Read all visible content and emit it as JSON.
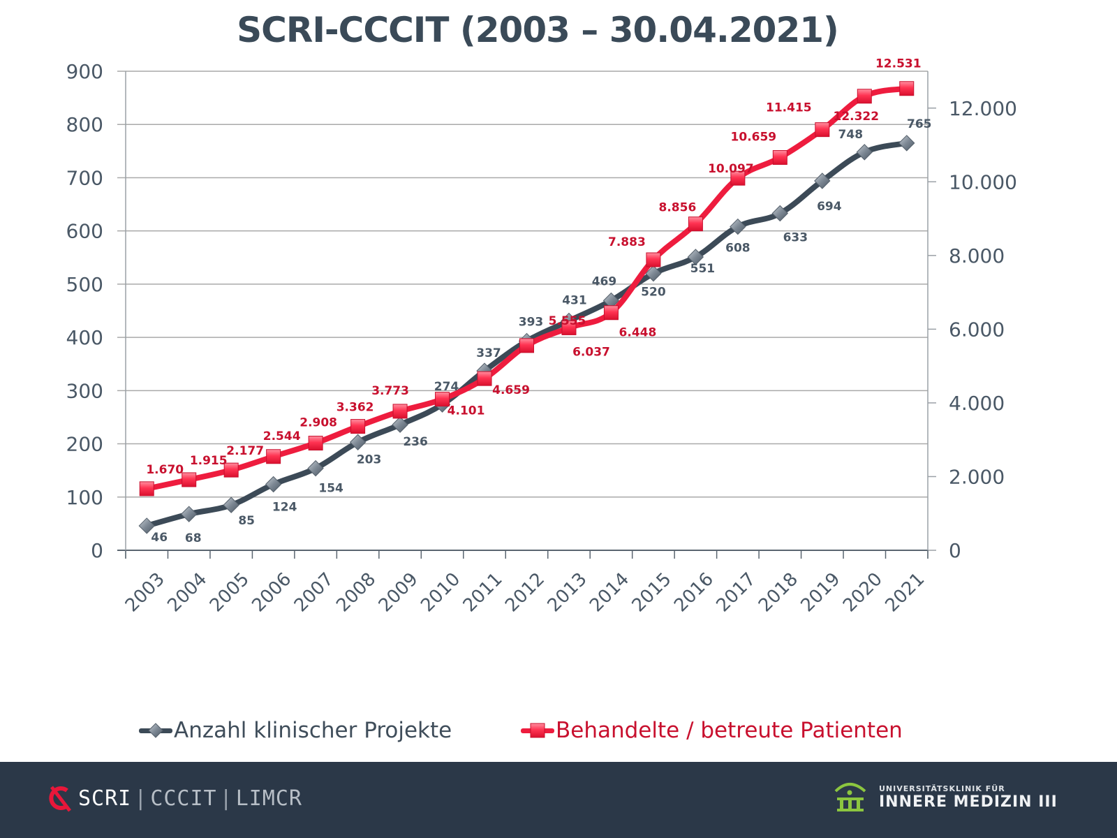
{
  "chart_data": {
    "type": "line",
    "title": "SCRI-CCCIT (2003 – 30.04.2021)",
    "xlabel": "",
    "ylabel": "",
    "ylabel_right": "",
    "categories": [
      "2003",
      "2004",
      "2005",
      "2006",
      "2007",
      "2008",
      "2009",
      "2010",
      "2011",
      "2012",
      "2013",
      "2014",
      "2015",
      "2016",
      "2017",
      "2018",
      "2019",
      "2020",
      "2021"
    ],
    "ylim": [
      0,
      900
    ],
    "yticks": [
      0,
      100,
      200,
      300,
      400,
      500,
      600,
      700,
      800,
      900
    ],
    "ytick_labels": [
      "0",
      "100",
      "200",
      "300",
      "400",
      "500",
      "600",
      "700",
      "800",
      "900"
    ],
    "ylim_right": [
      0,
      13000
    ],
    "yticks_right": [
      0,
      2000,
      4000,
      6000,
      8000,
      10000,
      12000
    ],
    "ytick_labels_right": [
      "0",
      "2.000",
      "4.000",
      "6.000",
      "8.000",
      "10.000",
      "12.000"
    ],
    "grid": true,
    "legend_position": "bottom",
    "series": [
      {
        "name": "Anzahl klinischer Projekte",
        "axis": "left",
        "color": "#3c4a57",
        "marker": "diamond",
        "values": [
          46,
          68,
          85,
          124,
          154,
          203,
          236,
          274,
          337,
          393,
          431,
          469,
          520,
          551,
          608,
          633,
          694,
          748,
          765
        ],
        "labels": [
          "46",
          "68",
          "85",
          "124",
          "154",
          "203",
          "236",
          "274",
          "337",
          "393",
          "431",
          "469",
          "520",
          "551",
          "608",
          "633",
          "694",
          "748",
          "765"
        ]
      },
      {
        "name": "Behandelte / betreute Patienten",
        "axis": "right",
        "color": "#ee1c3e",
        "marker": "square",
        "values": [
          1670,
          1915,
          2177,
          2544,
          2908,
          3362,
          3773,
          4101,
          4659,
          5555,
          6037,
          6448,
          7883,
          8856,
          10097,
          10659,
          11415,
          12322,
          12531
        ],
        "labels": [
          "1.670",
          "1.915",
          "2.177",
          "2.544",
          "2.908",
          "3.362",
          "3.773",
          "4.101",
          "4.659",
          "5.555",
          "6.037",
          "6.448",
          "7.883",
          "8.856",
          "10.097",
          "10.659",
          "11.415",
          "12.322",
          "12.531"
        ]
      }
    ]
  },
  "colors": {
    "title": "#3a4a58",
    "axis_text": "#4a5866",
    "dark_series": "#3c4a57",
    "red_series": "#ee1c3e",
    "red_label": "#c8102e",
    "footer_bg": "#2b3848",
    "logo_red": "#e8173a",
    "logo_green": "#8cc63f"
  },
  "footer": {
    "left_logo_icon": "scri-logo-icon",
    "left_scri": "SCRI",
    "left_sep1": "|",
    "left_cccit": "CCCIT",
    "left_sep2": "|",
    "left_limcr": "LIMCR",
    "right_logo_icon": "university-building-icon",
    "right_small": "UNIVERSITÄTSKLINIK FÜR",
    "right_big": "INNERE MEDIZIN III"
  }
}
